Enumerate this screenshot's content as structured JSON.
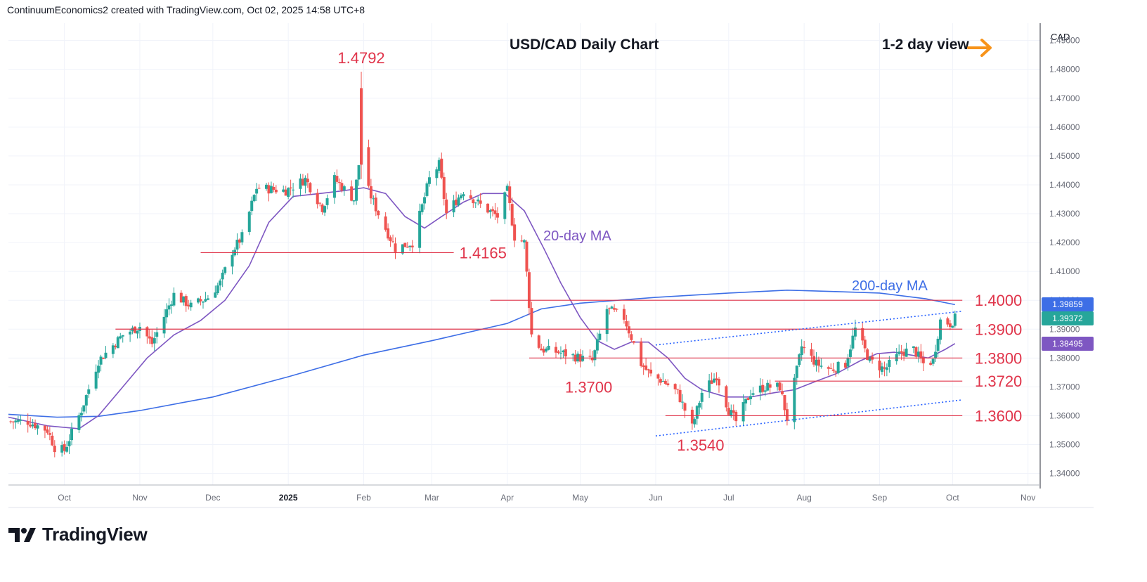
{
  "header": {
    "credit": "ContinuumEconomics2 created with TradingView.com, Oct 02, 2025 14:58 UTC+8"
  },
  "brand": {
    "name": "TradingView",
    "logo_icon": "tradingview-logo-icon"
  },
  "colors": {
    "up": "#26a69a",
    "down": "#ef5350",
    "level": "#e0344a",
    "ma20": "#7e57c2",
    "ma200": "#3d6ee6",
    "channel": "#2962ff",
    "arrow": "#f7931a",
    "grid": "#f0f3fa"
  },
  "chart_data": {
    "type": "candlestick",
    "title": "USD/CAD Daily Chart",
    "view_label": "1-2 day view",
    "view_icon": "arrow-right-icon",
    "currency": "CAD",
    "ylim": [
      1.336,
      1.496
    ],
    "y_ticks": [
      "1.34000",
      "1.35000",
      "1.36000",
      "1.37000",
      "1.38000",
      "1.39000",
      "1.40000",
      "1.41000",
      "1.42000",
      "1.43000",
      "1.44000",
      "1.45000",
      "1.46000",
      "1.47000",
      "1.48000",
      "1.49000"
    ],
    "x_range": [
      "2024-09-08",
      "2025-11-06"
    ],
    "x_ticks": [
      {
        "label": "Oct",
        "date": "2024-10-01"
      },
      {
        "label": "Nov",
        "date": "2024-11-01"
      },
      {
        "label": "Dec",
        "date": "2024-12-01"
      },
      {
        "label": "2025",
        "date": "2025-01-01",
        "bold": true
      },
      {
        "label": "Feb",
        "date": "2025-02-01"
      },
      {
        "label": "Mar",
        "date": "2025-03-01"
      },
      {
        "label": "Apr",
        "date": "2025-04-01"
      },
      {
        "label": "May",
        "date": "2025-05-01"
      },
      {
        "label": "Jun",
        "date": "2025-06-01"
      },
      {
        "label": "Jul",
        "date": "2025-07-01"
      },
      {
        "label": "Aug",
        "date": "2025-08-01"
      },
      {
        "label": "Sep",
        "date": "2025-09-01"
      },
      {
        "label": "Oct",
        "date": "2025-10-01"
      },
      {
        "label": "Nov",
        "date": "2025-11-01"
      }
    ],
    "levels": [
      {
        "label": "1.4000",
        "value": 1.4,
        "from": "2025-03-25",
        "to": "2025-10-05"
      },
      {
        "label": "1.3900",
        "value": 1.39,
        "from": "2024-10-22",
        "to": "2025-10-05"
      },
      {
        "label": "1.3800",
        "value": 1.38,
        "from": "2025-04-10",
        "to": "2025-10-05"
      },
      {
        "label": "1.3720",
        "value": 1.372,
        "from": "2025-07-20",
        "to": "2025-10-05"
      },
      {
        "label": "1.3600",
        "value": 1.36,
        "from": "2025-06-05",
        "to": "2025-10-05"
      },
      {
        "label": "1.4165",
        "value": 1.4165,
        "from": "2024-11-26",
        "to": "2025-03-10"
      }
    ],
    "annotations": [
      {
        "label": "1.4792",
        "value": 1.4792,
        "date": "2025-01-31"
      },
      {
        "label": "1.3700",
        "value": 1.37,
        "date": "2025-05-01"
      },
      {
        "label": "1.3540",
        "value": 1.354,
        "date": "2025-06-16"
      }
    ],
    "channel_lines": [
      {
        "from": [
          "2025-06-01",
          1.3845
        ],
        "to": [
          "2025-10-05",
          1.3962
        ]
      },
      {
        "from": [
          "2025-06-01",
          1.353
        ],
        "to": [
          "2025-10-05",
          1.3655
        ]
      }
    ],
    "ma20": {
      "label": "20-day MA",
      "points": [
        [
          "2024-09-08",
          1.3595
        ],
        [
          "2024-09-24",
          1.3565
        ],
        [
          "2024-10-07",
          1.3555
        ],
        [
          "2024-10-15",
          1.36
        ],
        [
          "2024-10-24",
          1.369
        ],
        [
          "2024-11-04",
          1.38
        ],
        [
          "2024-11-15",
          1.388
        ],
        [
          "2024-11-26",
          1.393
        ],
        [
          "2024-12-06",
          1.4
        ],
        [
          "2024-12-16",
          1.412
        ],
        [
          "2024-12-24",
          1.427
        ],
        [
          "2025-01-03",
          1.436
        ],
        [
          "2025-01-14",
          1.437
        ],
        [
          "2025-01-24",
          1.438
        ],
        [
          "2025-02-01",
          1.439
        ],
        [
          "2025-02-10",
          1.437
        ],
        [
          "2025-02-18",
          1.429
        ],
        [
          "2025-02-26",
          1.425
        ],
        [
          "2025-03-05",
          1.429
        ],
        [
          "2025-03-14",
          1.434
        ],
        [
          "2025-03-22",
          1.437
        ],
        [
          "2025-03-31",
          1.437
        ],
        [
          "2025-04-08",
          1.431
        ],
        [
          "2025-04-16",
          1.418
        ],
        [
          "2025-04-23",
          1.406
        ],
        [
          "2025-05-01",
          1.394
        ],
        [
          "2025-05-08",
          1.386
        ],
        [
          "2025-05-15",
          1.383
        ],
        [
          "2025-05-22",
          1.3855
        ],
        [
          "2025-05-29",
          1.3855
        ],
        [
          "2025-06-06",
          1.38
        ],
        [
          "2025-06-13",
          1.373
        ],
        [
          "2025-06-20",
          1.369
        ],
        [
          "2025-06-30",
          1.3665
        ],
        [
          "2025-07-10",
          1.3665
        ],
        [
          "2025-07-20",
          1.368
        ],
        [
          "2025-07-28",
          1.369
        ],
        [
          "2025-08-06",
          1.372
        ],
        [
          "2025-08-14",
          1.3745
        ],
        [
          "2025-08-24",
          1.379
        ],
        [
          "2025-08-31",
          1.3815
        ],
        [
          "2025-09-07",
          1.382
        ],
        [
          "2025-09-14",
          1.381
        ],
        [
          "2025-09-21",
          1.38
        ],
        [
          "2025-09-28",
          1.383
        ],
        [
          "2025-10-02",
          1.385
        ]
      ]
    },
    "ma200": {
      "label": "200-day MA",
      "points": [
        [
          "2024-09-08",
          1.3605
        ],
        [
          "2024-09-28",
          1.3595
        ],
        [
          "2024-10-15",
          1.3598
        ],
        [
          "2024-11-01",
          1.3618
        ],
        [
          "2024-12-01",
          1.3665
        ],
        [
          "2025-01-01",
          1.3735
        ],
        [
          "2025-02-01",
          1.381
        ],
        [
          "2025-03-01",
          1.386
        ],
        [
          "2025-04-01",
          1.392
        ],
        [
          "2025-04-15",
          1.397
        ],
        [
          "2025-05-01",
          1.399
        ],
        [
          "2025-06-01",
          1.401
        ],
        [
          "2025-07-01",
          1.4025
        ],
        [
          "2025-07-25",
          1.4035
        ],
        [
          "2025-08-15",
          1.403
        ],
        [
          "2025-09-01",
          1.4025
        ],
        [
          "2025-09-20",
          1.4005
        ],
        [
          "2025-10-02",
          1.3985
        ]
      ]
    },
    "price_tags": [
      {
        "label": "1.39859",
        "value": 1.39859,
        "color": "#3d6ee6"
      },
      {
        "label": "1.39372",
        "value": 1.39372,
        "color": "#26a69a"
      },
      {
        "label": "1.38495",
        "value": 1.38495,
        "color": "#7e57c2"
      }
    ],
    "close_anchors": [
      [
        "2024-09-09",
        1.358
      ],
      [
        "2024-09-16",
        1.358
      ],
      [
        "2024-09-24",
        1.355
      ],
      [
        "2024-09-27",
        1.349
      ],
      [
        "2024-10-01",
        1.348
      ],
      [
        "2024-10-08",
        1.362
      ],
      [
        "2024-10-15",
        1.379
      ],
      [
        "2024-10-25",
        1.388
      ],
      [
        "2024-11-01",
        1.391
      ],
      [
        "2024-11-06",
        1.385
      ],
      [
        "2024-11-15",
        1.402
      ],
      [
        "2024-11-22",
        1.398
      ],
      [
        "2024-11-29",
        1.401
      ],
      [
        "2024-12-04",
        1.406
      ],
      [
        "2024-12-09",
        1.417
      ],
      [
        "2024-12-13",
        1.422
      ],
      [
        "2024-12-19",
        1.439
      ],
      [
        "2024-12-31",
        1.438
      ],
      [
        "2025-01-08",
        1.442
      ],
      [
        "2025-01-15",
        1.432
      ],
      [
        "2025-01-20",
        1.442
      ],
      [
        "2025-01-28",
        1.435
      ],
      [
        "2025-01-31",
        1.453
      ],
      [
        "2025-02-03",
        1.438
      ],
      [
        "2025-02-07",
        1.43
      ],
      [
        "2025-02-14",
        1.418
      ],
      [
        "2025-02-21",
        1.42
      ],
      [
        "2025-02-28",
        1.442
      ],
      [
        "2025-03-04",
        1.447
      ],
      [
        "2025-03-07",
        1.43
      ],
      [
        "2025-03-14",
        1.438
      ],
      [
        "2025-03-21",
        1.433
      ],
      [
        "2025-03-28",
        1.429
      ],
      [
        "2025-04-01",
        1.438
      ],
      [
        "2025-04-04",
        1.422
      ],
      [
        "2025-04-08",
        1.42
      ],
      [
        "2025-04-11",
        1.388
      ],
      [
        "2025-04-15",
        1.383
      ],
      [
        "2025-04-22",
        1.382
      ],
      [
        "2025-05-01",
        1.38
      ],
      [
        "2025-05-06",
        1.379
      ],
      [
        "2025-05-12",
        1.397
      ],
      [
        "2025-05-19",
        1.394
      ],
      [
        "2025-05-26",
        1.378
      ],
      [
        "2025-05-30",
        1.374
      ],
      [
        "2025-06-04",
        1.372
      ],
      [
        "2025-06-10",
        1.368
      ],
      [
        "2025-06-16",
        1.356
      ],
      [
        "2025-06-20",
        1.368
      ],
      [
        "2025-06-26",
        1.374
      ],
      [
        "2025-07-01",
        1.362
      ],
      [
        "2025-07-04",
        1.358
      ],
      [
        "2025-07-10",
        1.368
      ],
      [
        "2025-07-16",
        1.37
      ],
      [
        "2025-07-22",
        1.37
      ],
      [
        "2025-07-25",
        1.359
      ],
      [
        "2025-07-31",
        1.384
      ],
      [
        "2025-08-06",
        1.378
      ],
      [
        "2025-08-12",
        1.376
      ],
      [
        "2025-08-18",
        1.378
      ],
      [
        "2025-08-22",
        1.39
      ],
      [
        "2025-08-28",
        1.379
      ],
      [
        "2025-09-03",
        1.376
      ],
      [
        "2025-09-10",
        1.382
      ],
      [
        "2025-09-15",
        1.383
      ],
      [
        "2025-09-19",
        1.378
      ],
      [
        "2025-09-23",
        1.379
      ],
      [
        "2025-09-26",
        1.393
      ],
      [
        "2025-09-30",
        1.392
      ],
      [
        "2025-10-02",
        1.3937
      ]
    ]
  }
}
